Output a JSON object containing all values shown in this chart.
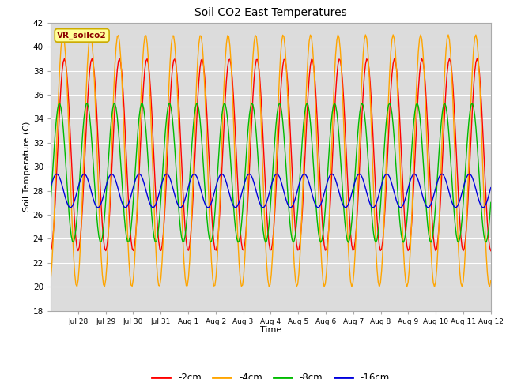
{
  "title": "Soil CO2 East Temperatures",
  "xlabel": "Time",
  "ylabel": "Soil Temperature (C)",
  "ylim": [
    18,
    42
  ],
  "yticks": [
    18,
    20,
    22,
    24,
    26,
    28,
    30,
    32,
    34,
    36,
    38,
    40,
    42
  ],
  "background_color": "#dcdcdc",
  "legend_label": "VR_soilco2",
  "series": [
    {
      "label": "-2cm",
      "color": "#ff0000"
    },
    {
      "label": "-4cm",
      "color": "#ffa500"
    },
    {
      "label": "-8cm",
      "color": "#00bb00"
    },
    {
      "label": "-16cm",
      "color": "#0000dd"
    }
  ],
  "xtick_labels": [
    "Jul 28",
    "Jul 29",
    "Jul 30",
    "Jul 31",
    "Aug 1",
    "Aug 2",
    "Aug 3",
    "Aug 4",
    "Aug 5",
    "Aug 6",
    "Aug 7",
    "Aug 8",
    "Aug 9",
    "Aug 10",
    "Aug 11",
    "Aug 12"
  ],
  "num_days": 16,
  "params": {
    "2cm": {
      "mean": 31.0,
      "amp": 8.0,
      "phase_shift": 0.0
    },
    "4cm": {
      "mean": 30.5,
      "amp": 10.5,
      "phase_shift": 0.05
    },
    "8cm": {
      "mean": 29.5,
      "amp": 5.8,
      "phase_shift": 0.18
    },
    "16cm": {
      "mean": 28.0,
      "amp": 1.4,
      "phase_shift": 0.28
    }
  }
}
